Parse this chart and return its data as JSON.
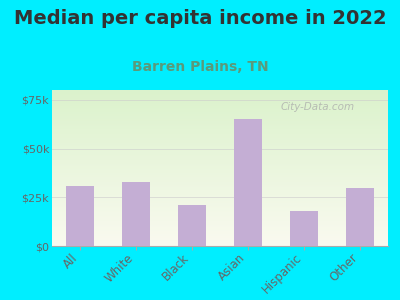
{
  "title": "Median per capita income in 2022",
  "subtitle": "Barren Plains, TN",
  "categories": [
    "All",
    "White",
    "Black",
    "Asian",
    "Hispanic",
    "Other"
  ],
  "values": [
    31000,
    33000,
    21000,
    65000,
    18000,
    30000
  ],
  "bar_color": "#c4aed4",
  "title_fontsize": 14,
  "subtitle_fontsize": 10,
  "subtitle_color": "#5a9a7a",
  "title_color": "#333333",
  "background_outer": "#00eeff",
  "ylim": [
    0,
    80000
  ],
  "yticks": [
    0,
    25000,
    50000,
    75000
  ],
  "ytick_labels": [
    "$0",
    "$25k",
    "$50k",
    "$75k"
  ],
  "watermark": "City-Data.com",
  "tick_color": "#666666",
  "xlabel_color": "#666666",
  "figsize": [
    4.0,
    3.0
  ],
  "dpi": 100,
  "grid_color": "#cccccc",
  "grid_alpha": 0.6
}
